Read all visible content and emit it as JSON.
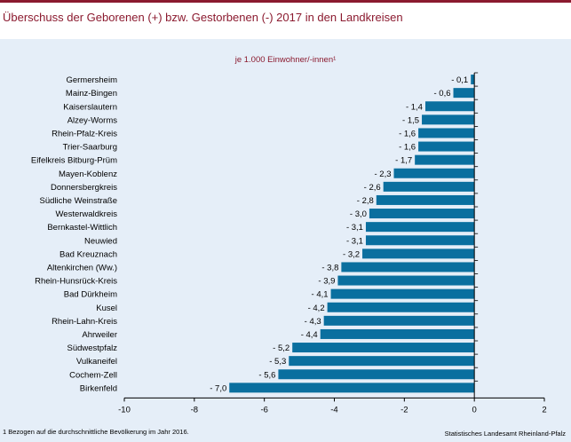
{
  "title": "Überschuss der Geborenen (+) bzw. Gestorbenen (-) 2017 in den Landkreisen",
  "footnote": "1 Bezogen auf die durchschnittliche Bevölkerung im Jahr 2016.",
  "source": "Statistisches Landesamt Rheinland-Pfalz",
  "colors": {
    "bar": "#0a6f9f",
    "accent": "#8b1a2f",
    "background": "#e5eef8"
  },
  "chart_data": {
    "type": "bar",
    "orientation": "horizontal",
    "subtitle": "je 1.000 Einwohner/-innen¹",
    "categories": [
      "Germersheim",
      "Mainz-Bingen",
      "Kaiserslautern",
      "Alzey-Worms",
      "Rhein-Pfalz-Kreis",
      "Trier-Saarburg",
      "Eifelkreis Bitburg-Prüm",
      "Mayen-Koblenz",
      "Donnersbergkreis",
      "Südliche Weinstraße",
      "Westerwaldkreis",
      "Bernkastel-Wittlich",
      "Neuwied",
      "Bad Kreuznach",
      "Altenkirchen (Ww.)",
      "Rhein-Hunsrück-Kreis",
      "Bad Dürkheim",
      "Kusel",
      "Rhein-Lahn-Kreis",
      "Ahrweiler",
      "Südwestpfalz",
      "Vulkaneifel",
      "Cochem-Zell",
      "Birkenfeld"
    ],
    "values": [
      -0.1,
      -0.6,
      -1.4,
      -1.5,
      -1.6,
      -1.6,
      -1.7,
      -2.3,
      -2.6,
      -2.8,
      -3.0,
      -3.1,
      -3.1,
      -3.2,
      -3.8,
      -3.9,
      -4.1,
      -4.2,
      -4.3,
      -4.4,
      -5.2,
      -5.3,
      -5.6,
      -7.0
    ],
    "value_labels": [
      "- 0,1",
      "- 0,6",
      "- 1,4",
      "- 1,5",
      "- 1,6",
      "- 1,6",
      "- 1,7",
      "- 2,3",
      "- 2,6",
      "- 2,8",
      "- 3,0",
      "- 3,1",
      "- 3,1",
      "- 3,2",
      "- 3,8",
      "- 3,9",
      "- 4,1",
      "- 4,2",
      "- 4,3",
      "- 4,4",
      "- 5,2",
      "- 5,3",
      "- 5,6",
      "- 7,0"
    ],
    "xlim": [
      -10,
      2
    ],
    "xticks": [
      -10,
      -8,
      -6,
      -4,
      -2,
      0,
      2
    ],
    "xtick_labels": [
      "-10",
      "-8",
      "-6",
      "-4",
      "-2",
      "0",
      "2"
    ],
    "grid": false
  }
}
